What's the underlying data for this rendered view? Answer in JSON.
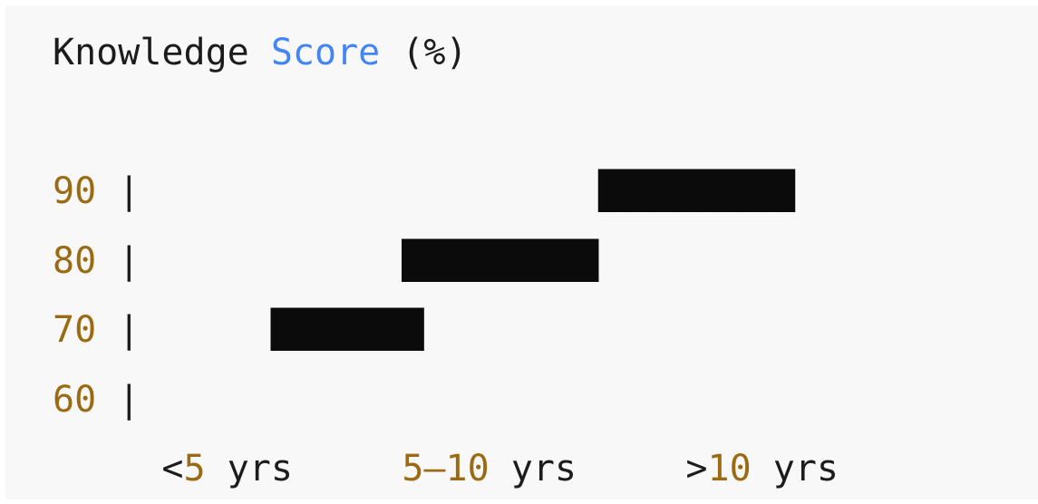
{
  "lines": [
    [
      "Knowledge ",
      "Score",
      " (%)"
    ],
    [],
    [
      "90",
      " |                     ",
      "█████████"
    ],
    [
      "80",
      " |            ",
      "█████████"
    ],
    [
      "70",
      " |      ",
      "███████"
    ],
    [
      "60",
      " |"
    ],
    [
      "     <",
      "5",
      " yrs     ",
      "5–10",
      " yrs     >",
      "10",
      " yrs"
    ]
  ]
}
